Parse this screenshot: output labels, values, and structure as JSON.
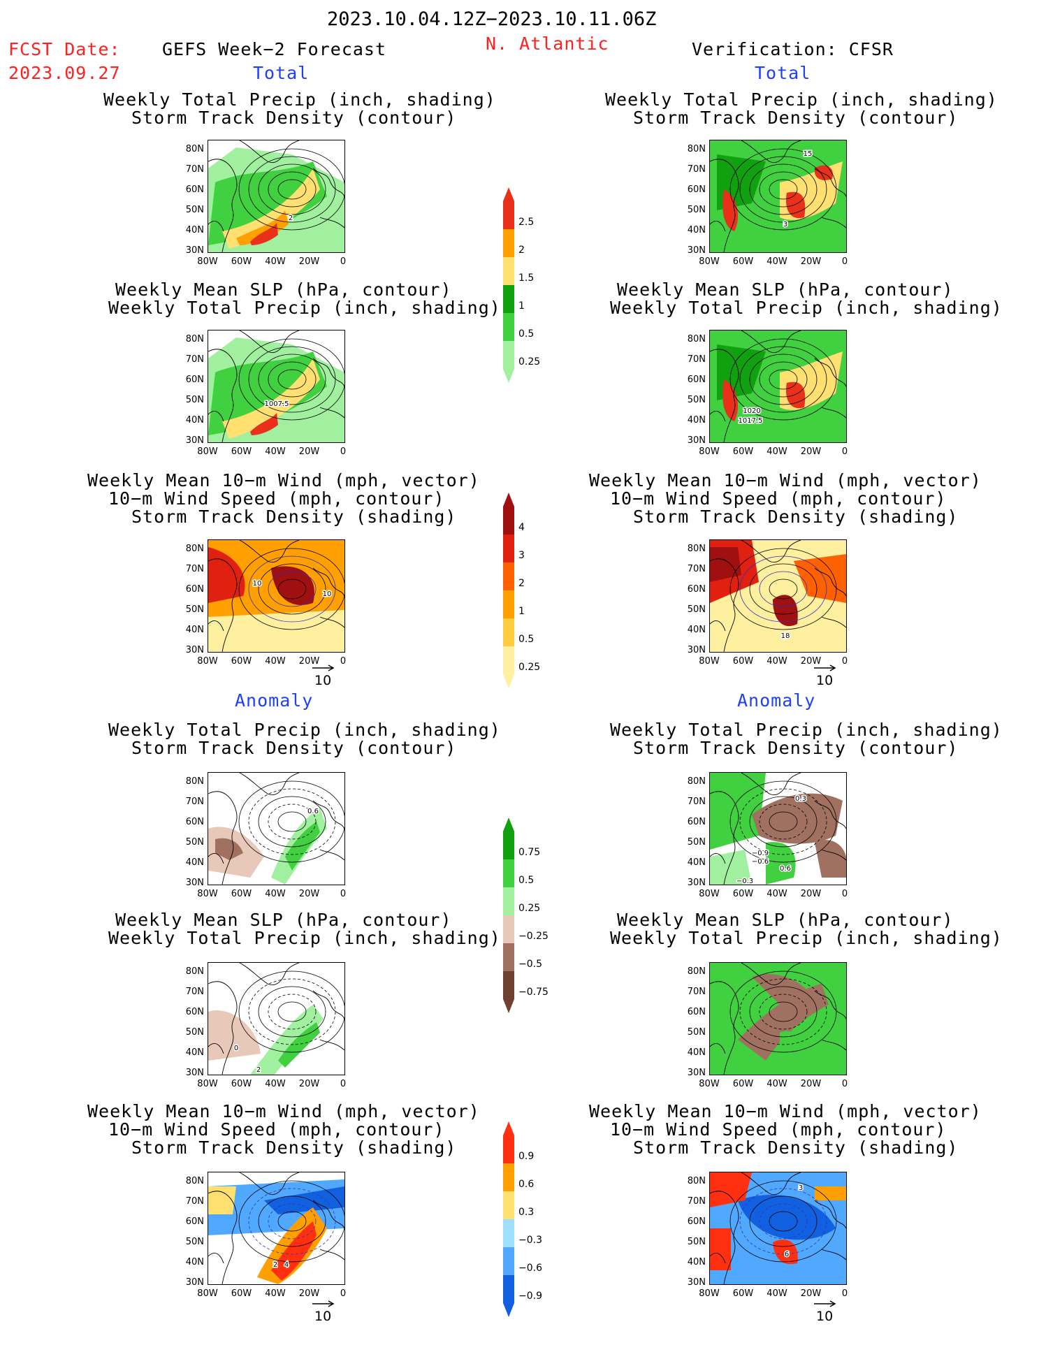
{
  "header": {
    "period": "2023.10.04.12Z−2023.10.11.06Z",
    "fcst_label": "FCST Date:",
    "fcst_date": "2023.09.27",
    "left_title": "GEFS Week−2 Forecast",
    "region": "N. Atlantic",
    "right_title": "Verification: CFSR"
  },
  "sections": {
    "total": "Total",
    "anomaly": "Anomaly"
  },
  "panel_titles": {
    "precip_track": [
      "Weekly Total Precip (inch, shading)",
      "Storm Track Density (contour)"
    ],
    "slp_precip": [
      "Weekly Mean SLP (hPa, contour)",
      "Weekly Total Precip (inch, shading)"
    ],
    "wind_track": [
      "Weekly Mean 10−m Wind (mph, vector)",
      "10−m Wind Speed (mph, contour)",
      "Storm Track Density (shading)"
    ]
  },
  "axes": {
    "lat_ticks": [
      "80N",
      "70N",
      "60N",
      "50N",
      "40N",
      "30N"
    ],
    "lon_ticks": [
      "80W",
      "60W",
      "40W",
      "20W",
      "0"
    ]
  },
  "vector_ref": "10",
  "colorbars": {
    "precip_total": {
      "labels": [
        "2.5",
        "2",
        "1.5",
        "1",
        "0.5",
        "0.25"
      ],
      "colors": [
        "#e8301a",
        "#ffa000",
        "#ffe070",
        "#10a010",
        "#40d040",
        "#a0f0a0"
      ]
    },
    "track_total": {
      "labels": [
        "4",
        "3",
        "2",
        "1",
        "0.5",
        "0.25"
      ],
      "colors": [
        "#a01010",
        "#e02010",
        "#ff6000",
        "#ffa000",
        "#ffcc40",
        "#fff0a0"
      ]
    },
    "precip_anom": {
      "labels": [
        "0.75",
        "0.5",
        "0.25",
        "−0.25",
        "−0.5",
        "−0.75"
      ],
      "colors": [
        "#10a010",
        "#40d040",
        "#a0f0a0",
        "#e8c8b8",
        "#a07060",
        "#704030"
      ]
    },
    "track_anom": {
      "labels": [
        "0.9",
        "0.6",
        "0.3",
        "−0.3",
        "−0.6",
        "−0.9"
      ],
      "colors": [
        "#ff3010",
        "#ffa000",
        "#ffe070",
        "#a0e0ff",
        "#50a8ff",
        "#1060e0"
      ]
    }
  },
  "contour_labels": {
    "p1_left": "2",
    "p1_right_a": "15",
    "p1_right_b": "3",
    "p2_left": "1007.5",
    "p2_right_a": "1020",
    "p2_right_b": "1017.5",
    "p3_left_a": "10",
    "p3_left_b": "10",
    "p3_right_a": "18",
    "p4_left": "0.6",
    "p4_right_a": "0.3",
    "p4_right_b": "−0.9",
    "p4_right_c": "−0.6",
    "p4_right_d": "0.6",
    "p4_right_e": "−0.3",
    "p5_left_a": "0",
    "p5_left_b": "2",
    "p6_left_a": "2",
    "p6_left_b": "4",
    "p6_right_a": "3",
    "p6_right_b": "6"
  }
}
